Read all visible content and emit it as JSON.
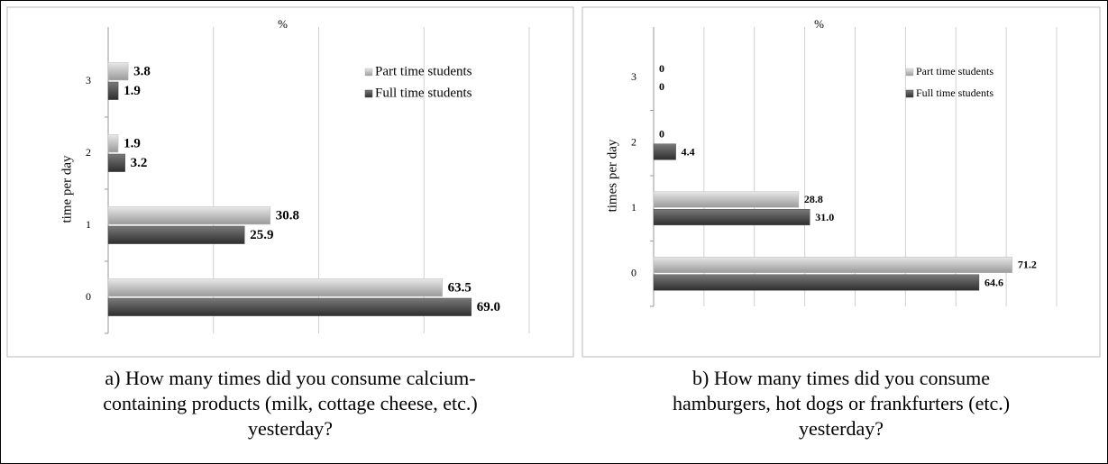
{
  "chart_data": [
    {
      "type": "bar",
      "orientation": "horizontal",
      "caption": [
        "a) How many times did you consume calcium-",
        "containing products (milk, cottage cheese, etc.)",
        "yesterday?"
      ],
      "x_label": "%",
      "y_label": "time per day",
      "categories": [
        "0",
        "1",
        "2",
        "3"
      ],
      "series": [
        {
          "name": "Part time students",
          "color": "#bdbdbd",
          "values": [
            63.5,
            30.8,
            1.9,
            3.8
          ],
          "value_labels": [
            "63.5",
            "30.8",
            "1.9",
            "3.8"
          ]
        },
        {
          "name": "Full time students",
          "color": "#505050",
          "values": [
            69.0,
            25.9,
            3.2,
            1.9
          ],
          "value_labels": [
            "69.0",
            "25.9",
            "3.2",
            "1.9"
          ]
        }
      ],
      "xlim": [
        0,
        80
      ],
      "xticks": [
        0,
        20,
        40,
        60,
        80
      ],
      "grid": true,
      "legend": "upper right"
    },
    {
      "type": "bar",
      "orientation": "horizontal",
      "caption": [
        "b) How many times did you consume",
        "hamburgers, hot dogs or frankfurters (etc.)",
        "yesterday?"
      ],
      "x_label": "%",
      "y_label": "times per day",
      "categories": [
        "0",
        "1",
        "2",
        "3"
      ],
      "series": [
        {
          "name": "Part time students",
          "color": "#bdbdbd",
          "values": [
            71.2,
            28.8,
            0,
            0
          ],
          "value_labels": [
            "71.2",
            "28.8",
            "0",
            "0"
          ]
        },
        {
          "name": "Full time students",
          "color": "#505050",
          "values": [
            64.6,
            31.0,
            4.4,
            0
          ],
          "value_labels": [
            "64.6",
            "31.0",
            "4.4",
            "0"
          ]
        }
      ],
      "xlim": [
        0,
        80
      ],
      "xticks": [
        0,
        10,
        20,
        30,
        40,
        50,
        60,
        70,
        80
      ],
      "grid": true,
      "legend": "upper right"
    }
  ]
}
